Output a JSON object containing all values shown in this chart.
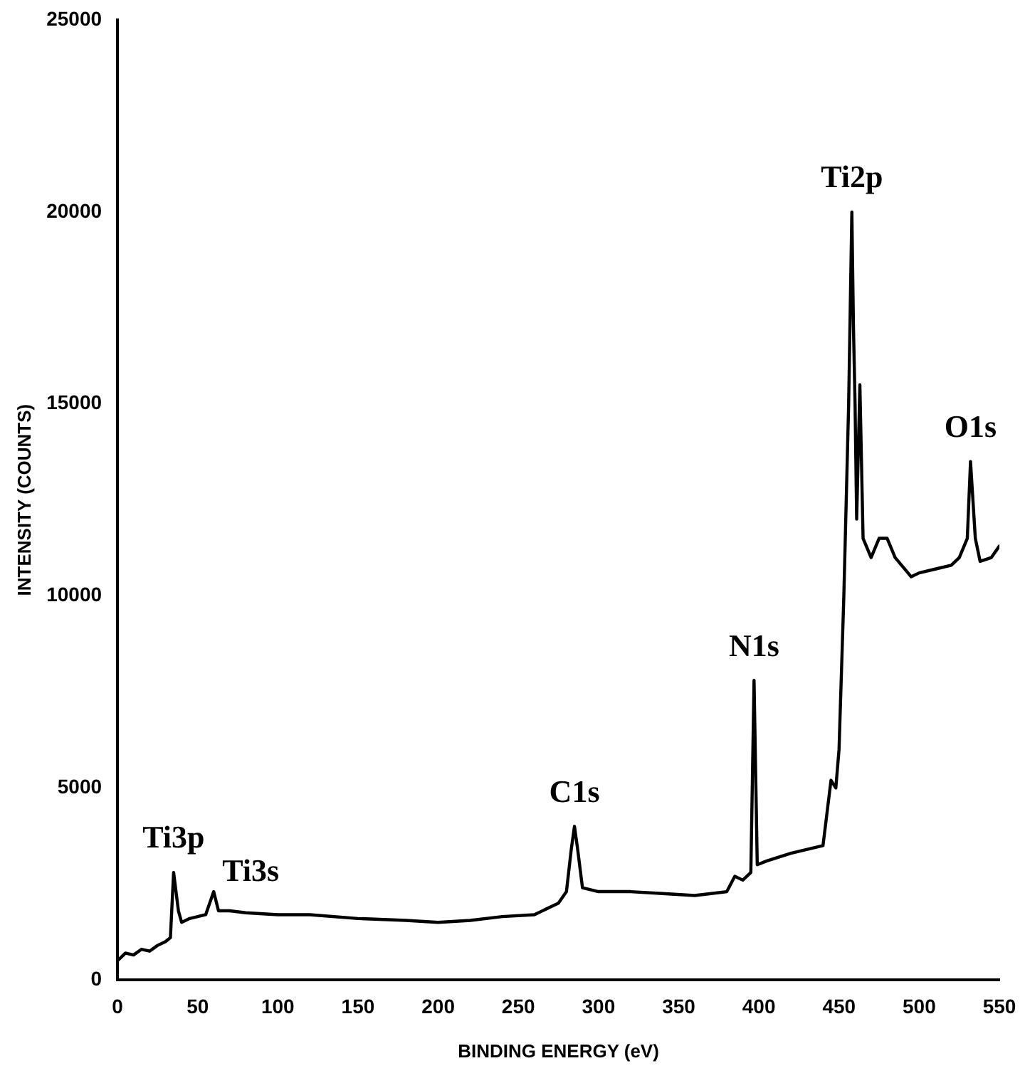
{
  "chart_data": {
    "type": "line",
    "xlabel": "BINDING ENERGY (eV)",
    "ylabel": "INTENSITY (COUNTS)",
    "xlim": [
      0,
      550
    ],
    "xticks": [
      0,
      50,
      100,
      150,
      200,
      250,
      300,
      350,
      400,
      450,
      500,
      550
    ],
    "ylim": [
      0,
      25000
    ],
    "yticks": [
      0,
      5000,
      10000,
      15000,
      20000,
      25000
    ],
    "grid": false,
    "legend": false,
    "marker": "none",
    "line_style": "solid",
    "series": [
      {
        "color": "#000000",
        "x": [
          0,
          5,
          10,
          15,
          20,
          25,
          30,
          33,
          35,
          38,
          40,
          45,
          55,
          60,
          63,
          70,
          80,
          100,
          120,
          150,
          180,
          200,
          220,
          240,
          260,
          275,
          280,
          283,
          285,
          287,
          290,
          300,
          320,
          340,
          360,
          380,
          385,
          390,
          395,
          397,
          399,
          405,
          420,
          440,
          445,
          448,
          450,
          453,
          456,
          458,
          459,
          460,
          461,
          463,
          465,
          470,
          475,
          480,
          485,
          495,
          500,
          510,
          520,
          525,
          530,
          532,
          535,
          538,
          545,
          550
        ],
        "values": [
          500,
          700,
          650,
          800,
          750,
          900,
          1000,
          1100,
          2800,
          1800,
          1500,
          1600,
          1700,
          2300,
          1800,
          1800,
          1750,
          1700,
          1700,
          1600,
          1550,
          1500,
          1550,
          1650,
          1700,
          2000,
          2300,
          3400,
          4000,
          3400,
          2400,
          2300,
          2300,
          2250,
          2200,
          2300,
          2700,
          2600,
          2800,
          7800,
          3000,
          3100,
          3300,
          3500,
          5200,
          5000,
          6000,
          10000,
          15000,
          20000,
          17000,
          15000,
          12000,
          15500,
          11500,
          11000,
          11500,
          11500,
          11000,
          10500,
          10600,
          10700,
          10800,
          11000,
          11500,
          13500,
          11500,
          10900,
          11000,
          11300
        ]
      }
    ],
    "annotations": [
      {
        "text": "Ti3p",
        "x": 35,
        "y": 2800
      },
      {
        "text": "Ti3s",
        "x": 60,
        "y": 2300
      },
      {
        "text": "C1s",
        "x": 285,
        "y": 4000
      },
      {
        "text": "N1s",
        "x": 397,
        "y": 7800
      },
      {
        "text": "Ti2p",
        "x": 458,
        "y": 20000
      },
      {
        "text": "O1s",
        "x": 532,
        "y": 13500
      }
    ]
  }
}
